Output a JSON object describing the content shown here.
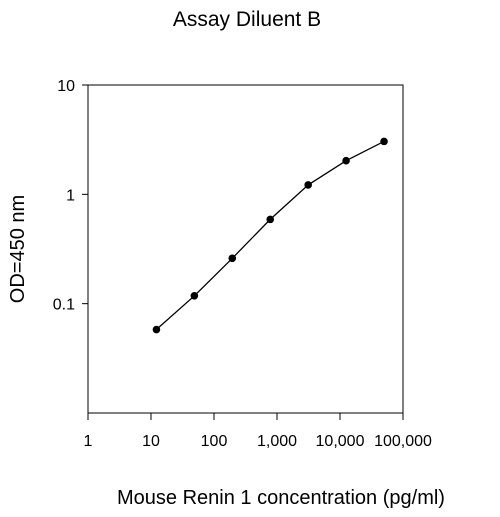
{
  "chart_data": {
    "type": "line",
    "title": "Assay Diluent B",
    "xlabel": "Mouse Renin 1 concentration (pg/ml)",
    "ylabel": "OD=450 nm",
    "x_scale": "log",
    "y_scale": "log",
    "xlim": [
      1,
      100000
    ],
    "ylim": [
      0.01,
      10
    ],
    "x_ticks": [
      1,
      10,
      100,
      1000,
      10000,
      100000
    ],
    "x_tick_labels": [
      "1",
      "10",
      "100",
      "1,000",
      "10,000",
      "100,000"
    ],
    "y_ticks": [
      0.1,
      1,
      10
    ],
    "y_tick_labels": [
      "0.1",
      "1",
      "10"
    ],
    "grid": false,
    "series": [
      {
        "x": [
          12.2,
          48.8,
          195,
          781,
          3125,
          12500,
          50000
        ],
        "y": [
          0.058,
          0.118,
          0.26,
          0.59,
          1.22,
          2.03,
          3.05
        ]
      }
    ],
    "colors": {
      "line": "#000000",
      "marker": "#000000",
      "axis": "#000000"
    }
  }
}
